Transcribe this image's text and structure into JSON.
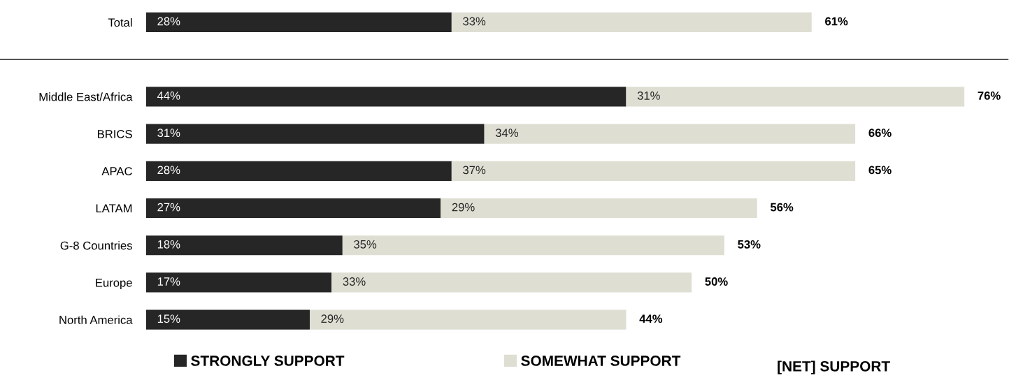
{
  "chart_data": {
    "type": "bar",
    "orientation": "horizontal",
    "stacked": true,
    "categories": [
      "Total",
      null,
      "Middle East/Africa",
      "BRICS",
      "APAC",
      "LATAM",
      "G-8 Countries",
      "Europe",
      "North America"
    ],
    "series": [
      {
        "name": "STRONGLY SUPPORT",
        "color": "#262626",
        "values": [
          28,
          null,
          44,
          31,
          28,
          27,
          18,
          17,
          15
        ],
        "value_labels": [
          "28%",
          null,
          "44%",
          "31%",
          "28%",
          "27%",
          "18%",
          "17%",
          "15%"
        ]
      },
      {
        "name": "SOMEWHAT SUPPORT",
        "color": "#deded3",
        "values": [
          33,
          null,
          31,
          34,
          37,
          29,
          35,
          33,
          29
        ],
        "value_labels": [
          "33%",
          null,
          "31%",
          "34%",
          "37%",
          "29%",
          "35%",
          "33%",
          "29%"
        ]
      }
    ],
    "totals": [
      "61%",
      null,
      "76%",
      "66%",
      "65%",
      "56%",
      "53%",
      "50%",
      "44%"
    ],
    "annotations": [
      "[NET] SUPPORT"
    ],
    "ref_lines": [
      {
        "axis": "y",
        "color": "#000000"
      }
    ],
    "xlim": [
      0,
      79
    ],
    "tick_labels": "y",
    "grid": false,
    "legend": "bottom"
  }
}
